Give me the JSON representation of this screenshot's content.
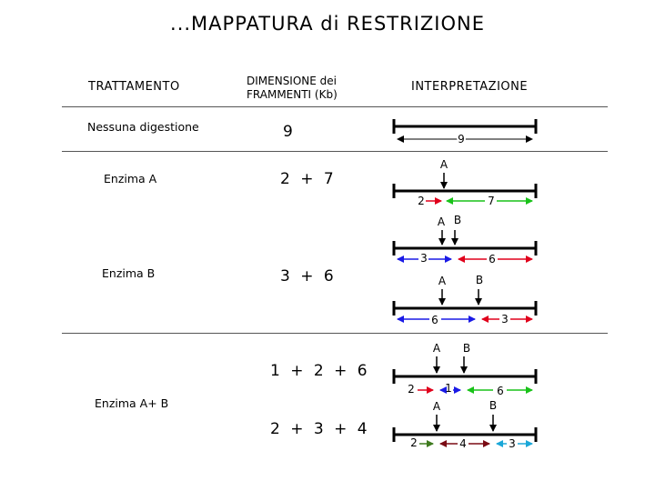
{
  "title": "...MAPPATURA di RESTRIZIONE",
  "headers": {
    "treatment": "TRATTAMENTO",
    "size_line1": "DIMENSIONE  dei",
    "size_line2": "FRAMMENTI (Kb)",
    "interpretation": "INTERPRETAZIONE"
  },
  "rows": {
    "none": {
      "label": "Nessuna digestione",
      "sizes": "9"
    },
    "a": {
      "label": "Enzima A",
      "sizes": "2 + 7"
    },
    "b": {
      "label": "Enzima B",
      "sizes": "3 + 6"
    },
    "ab": {
      "label": "Enzima A+ B",
      "sizes_1": "1 + 2 + 6",
      "sizes_2": "2 + 3 + 4"
    }
  },
  "maps": {
    "none": {
      "total": "9"
    },
    "a": {
      "site": "A",
      "left": "2",
      "right": "7"
    },
    "b1": {
      "site_a": "A",
      "site_b": "B",
      "left": "3",
      "right": "6"
    },
    "b2": {
      "site_a": "A",
      "site_b": "B",
      "left": "6",
      "right": "3"
    },
    "ab1": {
      "site_a": "A",
      "site_b": "B",
      "f1": "2",
      "f2": "1",
      "f3": "6"
    },
    "ab2": {
      "site_a": "A",
      "site_b": "B",
      "f1": "2",
      "f2": "4",
      "f3": "3"
    }
  },
  "colors": {
    "black": "#000000",
    "red": "#e0001b",
    "green": "#19c219",
    "blue": "#1a1ae6",
    "olive": "#3e7a1e",
    "dark_red": "#7a0a14",
    "cyan": "#1aa7d8",
    "divider": "#555555"
  }
}
